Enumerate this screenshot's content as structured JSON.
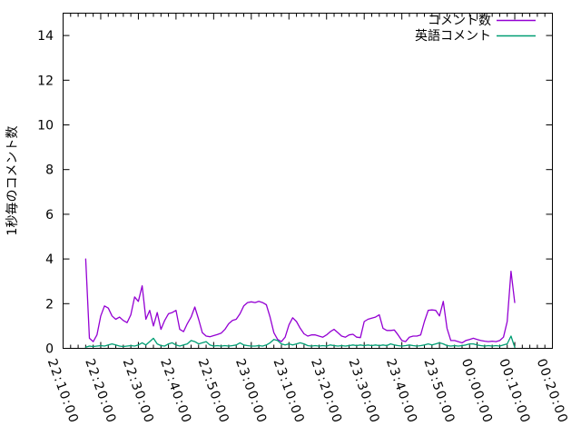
{
  "chart_data": {
    "type": "line",
    "title": "",
    "xlabel": "",
    "ylabel": "1秒毎のコメント数",
    "frame_color": "#000000",
    "background_color": "#ffffff",
    "ylim": [
      0,
      15
    ],
    "y_ticks": [
      0,
      2,
      4,
      6,
      8,
      10,
      12,
      14
    ],
    "x_tick_labels": [
      "22:10:00",
      "22:20:00",
      "22:30:00",
      "22:40:00",
      "22:50:00",
      "23:00:00",
      "23:10:00",
      "23:20:00",
      "23:30:00",
      "23:40:00",
      "23:50:00",
      "00:00:00",
      "00:10:00",
      "00:20:00"
    ],
    "x_major_step_minutes": 10,
    "x_minor_step_minutes": 2,
    "x_total_minutes": 130,
    "grid": "off",
    "legend_position": "top-right-inside",
    "series": [
      {
        "name": "コメント数",
        "color": "#9400d3",
        "t_start_min": 6,
        "t_step_min": 1,
        "values": [
          4.0,
          0.45,
          0.3,
          0.6,
          1.45,
          1.9,
          1.8,
          1.45,
          1.3,
          1.4,
          1.25,
          1.15,
          1.5,
          2.3,
          2.1,
          2.8,
          1.3,
          1.7,
          1.0,
          1.6,
          0.85,
          1.25,
          1.55,
          1.6,
          1.7,
          0.85,
          0.75,
          1.1,
          1.4,
          1.85,
          1.3,
          0.7,
          0.55,
          0.52,
          0.57,
          0.62,
          0.68,
          0.85,
          1.1,
          1.25,
          1.3,
          1.55,
          1.9,
          2.05,
          2.08,
          2.05,
          2.1,
          2.05,
          1.95,
          1.4,
          0.7,
          0.4,
          0.3,
          0.5,
          1.05,
          1.37,
          1.2,
          0.9,
          0.65,
          0.55,
          0.6,
          0.6,
          0.55,
          0.5,
          0.6,
          0.75,
          0.85,
          0.7,
          0.55,
          0.5,
          0.6,
          0.63,
          0.5,
          0.48,
          1.2,
          1.3,
          1.35,
          1.4,
          1.5,
          0.9,
          0.8,
          0.8,
          0.82,
          0.6,
          0.35,
          0.3,
          0.5,
          0.55,
          0.55,
          0.6,
          1.2,
          1.7,
          1.72,
          1.7,
          1.45,
          2.1,
          0.9,
          0.35,
          0.35,
          0.3,
          0.25,
          0.35,
          0.4,
          0.45,
          0.4,
          0.35,
          0.32,
          0.3,
          0.32,
          0.3,
          0.35,
          0.5,
          1.2,
          3.45,
          2.05
        ]
      },
      {
        "name": "英語コメント",
        "color": "#009e73",
        "t_start_min": 6,
        "t_step_min": 1,
        "values": [
          0.05,
          0.1,
          0.08,
          0.1,
          0.12,
          0.1,
          0.15,
          0.2,
          0.15,
          0.1,
          0.08,
          0.1,
          0.12,
          0.1,
          0.15,
          0.25,
          0.15,
          0.3,
          0.45,
          0.2,
          0.12,
          0.1,
          0.2,
          0.25,
          0.15,
          0.1,
          0.15,
          0.2,
          0.35,
          0.3,
          0.2,
          0.25,
          0.3,
          0.15,
          0.1,
          0.12,
          0.1,
          0.12,
          0.1,
          0.12,
          0.15,
          0.25,
          0.15,
          0.12,
          0.1,
          0.1,
          0.12,
          0.1,
          0.15,
          0.25,
          0.4,
          0.35,
          0.2,
          0.15,
          0.2,
          0.15,
          0.2,
          0.25,
          0.2,
          0.12,
          0.1,
          0.12,
          0.1,
          0.12,
          0.1,
          0.15,
          0.12,
          0.1,
          0.12,
          0.1,
          0.12,
          0.15,
          0.12,
          0.15,
          0.12,
          0.15,
          0.12,
          0.15,
          0.12,
          0.15,
          0.12,
          0.2,
          0.15,
          0.12,
          0.1,
          0.12,
          0.15,
          0.12,
          0.1,
          0.12,
          0.15,
          0.2,
          0.15,
          0.2,
          0.25,
          0.2,
          0.12,
          0.1,
          0.12,
          0.1,
          0.12,
          0.15,
          0.2,
          0.2,
          0.15,
          0.12,
          0.1,
          0.12,
          0.1,
          0.12,
          0.1,
          0.15,
          0.2,
          0.55,
          0.05
        ]
      }
    ]
  }
}
